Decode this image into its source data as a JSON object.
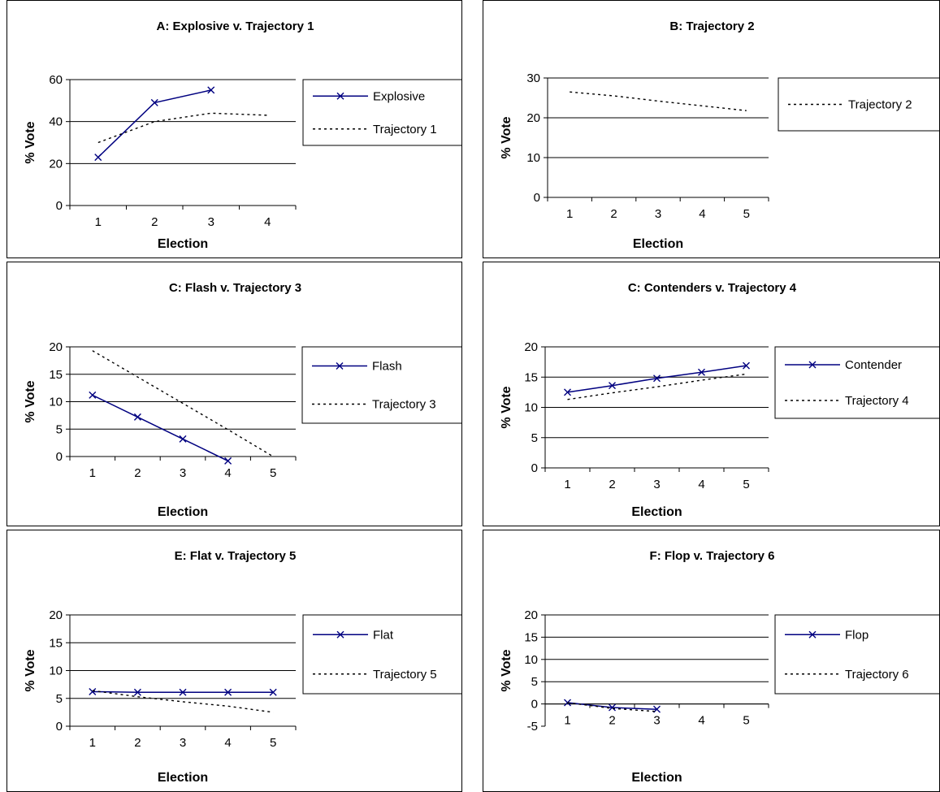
{
  "chart_data": [
    {
      "type": "line",
      "title": "A: Explosive v. Trajectory 1",
      "xlabel": "Election",
      "ylabel": "% Vote",
      "categories": [
        "1",
        "2",
        "3",
        "4"
      ],
      "ylim": [
        0,
        60
      ],
      "yticks": [
        0,
        20,
        40,
        60
      ],
      "grid": true,
      "legend_position": "right",
      "series": [
        {
          "name": "Explosive",
          "style": "solid-x",
          "values": [
            23,
            49,
            55,
            null
          ]
        },
        {
          "name": "Trajectory 1",
          "style": "dotted",
          "values": [
            30,
            40,
            44,
            43
          ]
        }
      ]
    },
    {
      "type": "line",
      "title": "B: Trajectory 2",
      "xlabel": "Election",
      "ylabel": "% Vote",
      "categories": [
        "1",
        "2",
        "3",
        "4",
        "5"
      ],
      "ylim": [
        0,
        30
      ],
      "yticks": [
        0,
        10,
        20,
        30
      ],
      "grid": true,
      "legend_position": "right",
      "series": [
        {
          "name": "Trajectory 2",
          "style": "dotted",
          "values": [
            26.5,
            25.5,
            24.2,
            23,
            21.8
          ]
        }
      ]
    },
    {
      "type": "line",
      "title": "C: Flash v. Trajectory 3",
      "xlabel": "Election",
      "ylabel": "% Vote",
      "categories": [
        "1",
        "2",
        "3",
        "4",
        "5"
      ],
      "ylim": [
        0,
        20
      ],
      "yticks": [
        0,
        5,
        10,
        15,
        20
      ],
      "grid": true,
      "legend_position": "right",
      "series": [
        {
          "name": "Flash",
          "style": "solid-x",
          "values": [
            11.2,
            7.2,
            3.2,
            -0.8,
            null
          ]
        },
        {
          "name": "Trajectory 3",
          "style": "dotted",
          "values": [
            19.3,
            14.5,
            9.7,
            4.9,
            0
          ]
        }
      ]
    },
    {
      "type": "line",
      "title": "C: Contenders v. Trajectory 4",
      "xlabel": "Election",
      "ylabel": "% Vote",
      "categories": [
        "1",
        "2",
        "3",
        "4",
        "5"
      ],
      "ylim": [
        0,
        20
      ],
      "yticks": [
        0,
        5,
        10,
        15,
        20
      ],
      "grid": true,
      "legend_position": "right",
      "series": [
        {
          "name": "Contender",
          "style": "solid-x",
          "values": [
            12.5,
            13.6,
            14.8,
            15.8,
            16.9
          ]
        },
        {
          "name": "Trajectory 4",
          "style": "dotted",
          "values": [
            11.3,
            12.4,
            13.4,
            14.5,
            15.5
          ]
        }
      ]
    },
    {
      "type": "line",
      "title": "E: Flat v. Trajectory 5",
      "xlabel": "Election",
      "ylabel": "% Vote",
      "categories": [
        "1",
        "2",
        "3",
        "4",
        "5"
      ],
      "ylim": [
        0,
        20
      ],
      "yticks": [
        0,
        5,
        10,
        15,
        20
      ],
      "grid": true,
      "legend_position": "right",
      "series": [
        {
          "name": "Flat",
          "style": "solid-x",
          "values": [
            6.2,
            6.1,
            6.1,
            6.1,
            6.1
          ]
        },
        {
          "name": "Trajectory 5",
          "style": "dotted",
          "values": [
            6.4,
            5.3,
            4.4,
            3.6,
            2.5
          ]
        }
      ]
    },
    {
      "type": "line",
      "title": "F: Flop v. Trajectory 6",
      "xlabel": "Election",
      "ylabel": "% Vote",
      "categories": [
        "1",
        "2",
        "3",
        "4",
        "5"
      ],
      "ylim": [
        -5,
        20
      ],
      "yticks": [
        -5,
        0,
        5,
        10,
        15,
        20
      ],
      "grid": true,
      "legend_position": "right",
      "series": [
        {
          "name": "Flop",
          "style": "solid-x",
          "values": [
            0.3,
            -0.8,
            -1.2,
            null,
            null
          ]
        },
        {
          "name": "Trajectory 6",
          "style": "dotted",
          "values": [
            0.3,
            -1,
            -1.7,
            null,
            null
          ]
        }
      ]
    }
  ]
}
